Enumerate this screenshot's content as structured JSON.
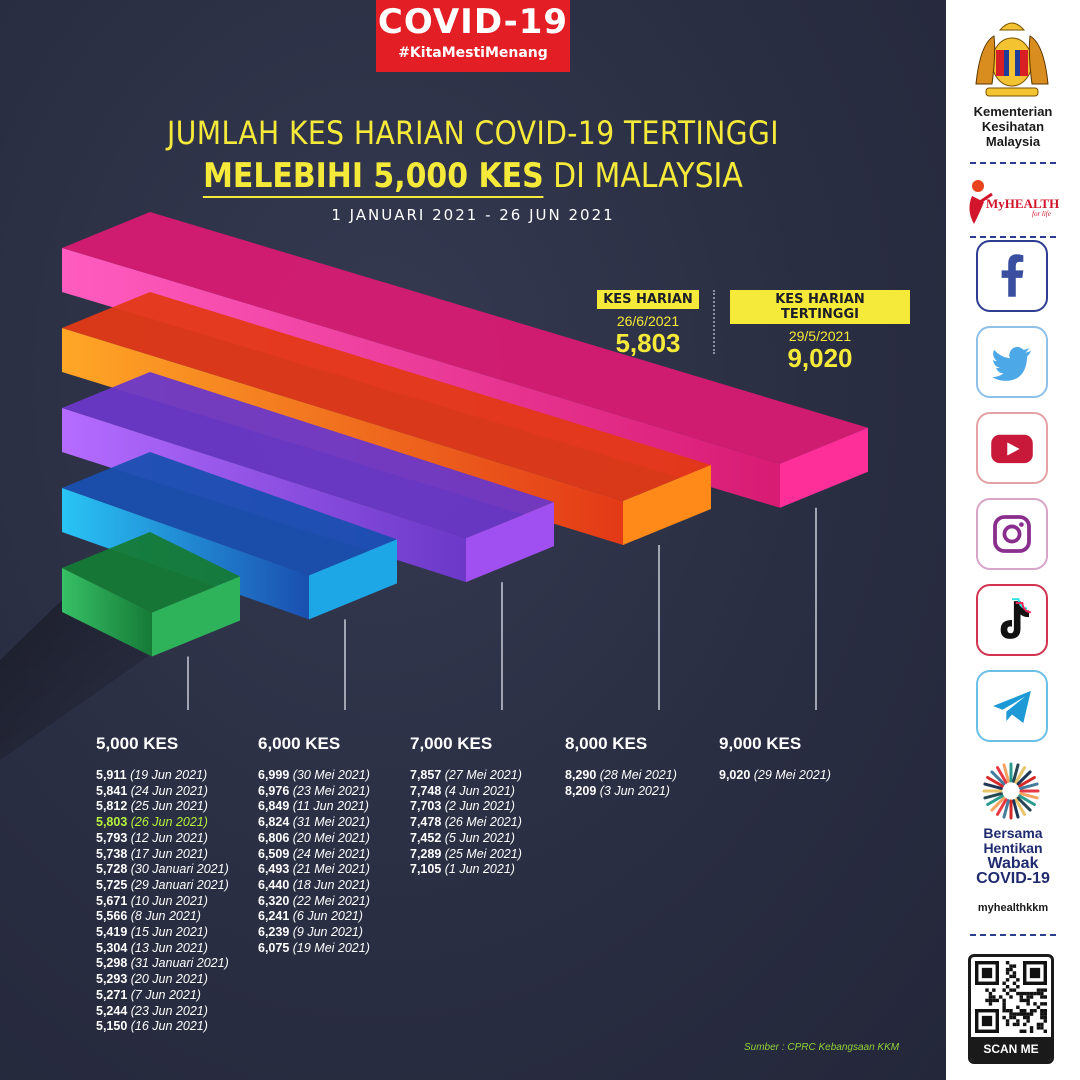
{
  "header": {
    "badge_title": "COVID-19",
    "badge_tag": "#KitaMestiMenang"
  },
  "title": {
    "line1": "JUMLAH KES HARIAN COVID-19 TERTINGGI",
    "line2_highlight": "MELEBIHI 5,000 KES",
    "line2_rest": " DI MALAYSIA",
    "date_range": "1 JANUARI 2021 - 26 JUN 2021"
  },
  "stats": {
    "daily": {
      "label": "KES HARIAN",
      "date": "26/6/2021",
      "value": "5,803"
    },
    "highest": {
      "label": "KES HARIAN TERTINGGI",
      "date": "29/5/2021",
      "value": "9,020"
    }
  },
  "colors": {
    "green": "#2fb35a",
    "blue": "#1ea7e6",
    "purple": "#a04ff0",
    "orange": "#ff8a1a",
    "pink": "#ff2f9a",
    "accent_yellow": "#f5e93a",
    "highlight_green": "#b6f23c"
  },
  "chart_data": {
    "type": "bar",
    "categories": [
      "5,000 KES",
      "6,000 KES",
      "7,000 KES",
      "8,000 KES",
      "9,000 KES"
    ],
    "ylim": [
      4000,
      9000
    ],
    "ticks": [
      5000,
      6000,
      7000,
      8000,
      9000
    ],
    "series": [
      {
        "category": "5,000 KES",
        "entries": [
          {
            "value": "5,911",
            "date": "(19 Jun 2021)"
          },
          {
            "value": "5,841",
            "date": "(24 Jun 2021)"
          },
          {
            "value": "5,812",
            "date": "(25 Jun 2021)"
          },
          {
            "value": "5,803",
            "date": "(26 Jun 2021)",
            "highlight": true
          },
          {
            "value": "5,793",
            "date": "(12 Jun 2021)"
          },
          {
            "value": "5,738",
            "date": "(17 Jun 2021)"
          },
          {
            "value": "5,728",
            "date": "(30 Januari 2021)"
          },
          {
            "value": "5,725",
            "date": "(29 Januari 2021)"
          },
          {
            "value": "5,671",
            "date": "(10 Jun 2021)"
          },
          {
            "value": "5,566",
            "date": "(8 Jun 2021)"
          },
          {
            "value": "5,419",
            "date": "(15 Jun 2021)"
          },
          {
            "value": "5,304",
            "date": "(13 Jun 2021)"
          },
          {
            "value": "5,298",
            "date": "(31 Januari 2021)"
          },
          {
            "value": "5,293",
            "date": "(20 Jun 2021)"
          },
          {
            "value": "5,271",
            "date": "(7 Jun 2021)"
          },
          {
            "value": "5,244",
            "date": "(23 Jun 2021)"
          },
          {
            "value": "5,150",
            "date": "(16 Jun 2021)"
          }
        ]
      },
      {
        "category": "6,000 KES",
        "entries": [
          {
            "value": "6,999",
            "date": "(30 Mei 2021)"
          },
          {
            "value": "6,976",
            "date": "(23 Mei 2021)"
          },
          {
            "value": "6,849",
            "date": "(11 Jun 2021)"
          },
          {
            "value": "6,824",
            "date": "(31 Mei 2021)"
          },
          {
            "value": "6,806",
            "date": "(20 Mei 2021)"
          },
          {
            "value": "6,509",
            "date": "(24 Mei 2021)"
          },
          {
            "value": "6,493",
            "date": "(21 Mei 2021)"
          },
          {
            "value": "6,440",
            "date": "(18 Jun 2021)"
          },
          {
            "value": "6,320",
            "date": "(22 Mei 2021)"
          },
          {
            "value": "6,241",
            "date": "(6 Jun 2021)"
          },
          {
            "value": "6,239",
            "date": "(9 Jun 2021)"
          },
          {
            "value": "6,075",
            "date": "(19 Mei 2021)"
          }
        ]
      },
      {
        "category": "7,000 KES",
        "entries": [
          {
            "value": "7,857",
            "date": "(27 Mei 2021)"
          },
          {
            "value": "7,748",
            "date": "(4 Jun 2021)"
          },
          {
            "value": "7,703",
            "date": "(2 Jun 2021)"
          },
          {
            "value": "7,478",
            "date": "(26 Mei 2021)"
          },
          {
            "value": "7,452",
            "date": "(5 Jun 2021)"
          },
          {
            "value": "7,289",
            "date": "(25 Mei 2021)"
          },
          {
            "value": "7,105",
            "date": "(1 Jun 2021)"
          }
        ]
      },
      {
        "category": "8,000 KES",
        "entries": [
          {
            "value": "8,290",
            "date": "(28 Mei 2021)"
          },
          {
            "value": "8,209",
            "date": "(3 Jun 2021)"
          }
        ]
      },
      {
        "category": "9,000 KES",
        "entries": [
          {
            "value": "9,020",
            "date": "(29 Mei 2021)"
          }
        ]
      }
    ]
  },
  "source": "Sumber : CPRC Kebangsaan KKM",
  "sidebar": {
    "ministry": [
      "Kementerian",
      "Kesihatan",
      "Malaysia"
    ],
    "myhealth_logo": "MyHEALTH",
    "myhealth_tagline": "for life",
    "social_icons": [
      "facebook-icon",
      "twitter-icon",
      "youtube-icon",
      "instagram-icon",
      "tiktok-icon",
      "telegram-icon"
    ],
    "campaign": [
      "Bersama",
      "Hentikan",
      "Wabak",
      "COVID-19"
    ],
    "handle": "myhealthkkm",
    "scan": "SCAN ME"
  }
}
